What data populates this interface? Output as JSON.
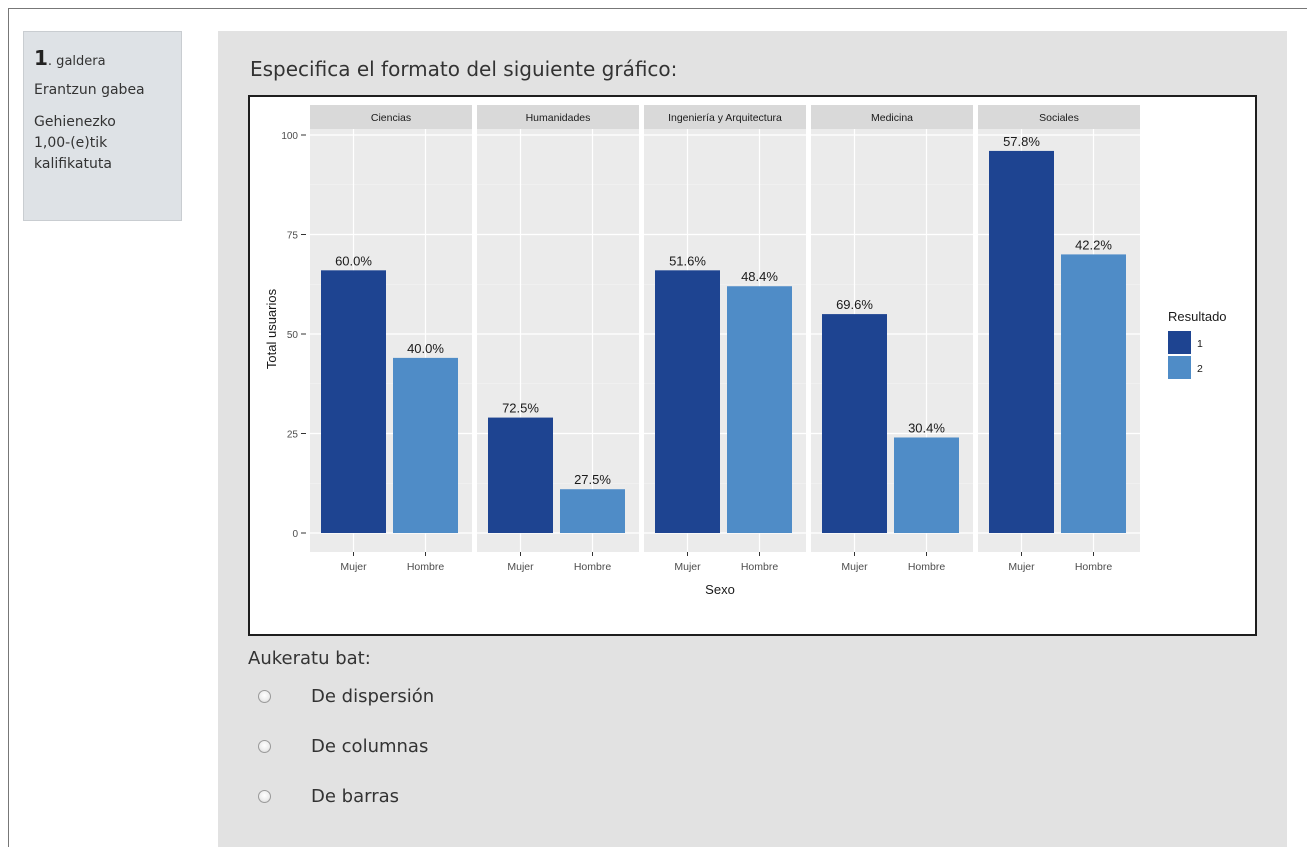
{
  "question_info": {
    "number": "1",
    "number_suffix": ". galdera",
    "state": "Erantzun gabea",
    "mark": "Gehienezko 1,00-(e)tik kalifikatuta"
  },
  "question_text": "Especifica el formato del siguiente gráfico:",
  "chart_data": {
    "type": "bar",
    "facets": [
      "Ciencias",
      "Humanidades",
      "Ingeniería y Arquitectura",
      "Medicina",
      "Sociales"
    ],
    "categories": [
      "Mujer",
      "Hombre"
    ],
    "xlabel": "Sexo",
    "ylabel": "Total usuarios",
    "ylim": [
      0,
      100
    ],
    "yticks": [
      0,
      25,
      50,
      75,
      100
    ],
    "legend_title": "Resultado",
    "legend_position": "right",
    "grid": true,
    "series": [
      {
        "name": "1",
        "color": "#1e4491"
      },
      {
        "name": "2",
        "color": "#4f8cc7"
      }
    ],
    "values": [
      [
        {
          "value": 66,
          "label": "60.0%"
        },
        {
          "value": 44,
          "label": "40.0%"
        }
      ],
      [
        {
          "value": 29,
          "label": "72.5%"
        },
        {
          "value": 11,
          "label": "27.5%"
        }
      ],
      [
        {
          "value": 66,
          "label": "51.6%"
        },
        {
          "value": 62,
          "label": "48.4%"
        }
      ],
      [
        {
          "value": 55,
          "label": "69.6%"
        },
        {
          "value": 24,
          "label": "30.4%"
        }
      ],
      [
        {
          "value": 96,
          "label": "57.8%"
        },
        {
          "value": 70,
          "label": "42.2%"
        }
      ]
    ]
  },
  "answer": {
    "prompt": "Aukeratu bat:",
    "options": [
      "De dispersión",
      "De columnas",
      "De barras"
    ]
  },
  "colors": {
    "info_bg": "#dee2e6",
    "content_bg": "#e2e2e2",
    "panel_bg": "#ebebeb",
    "strip_bg": "#d9d9d9"
  }
}
